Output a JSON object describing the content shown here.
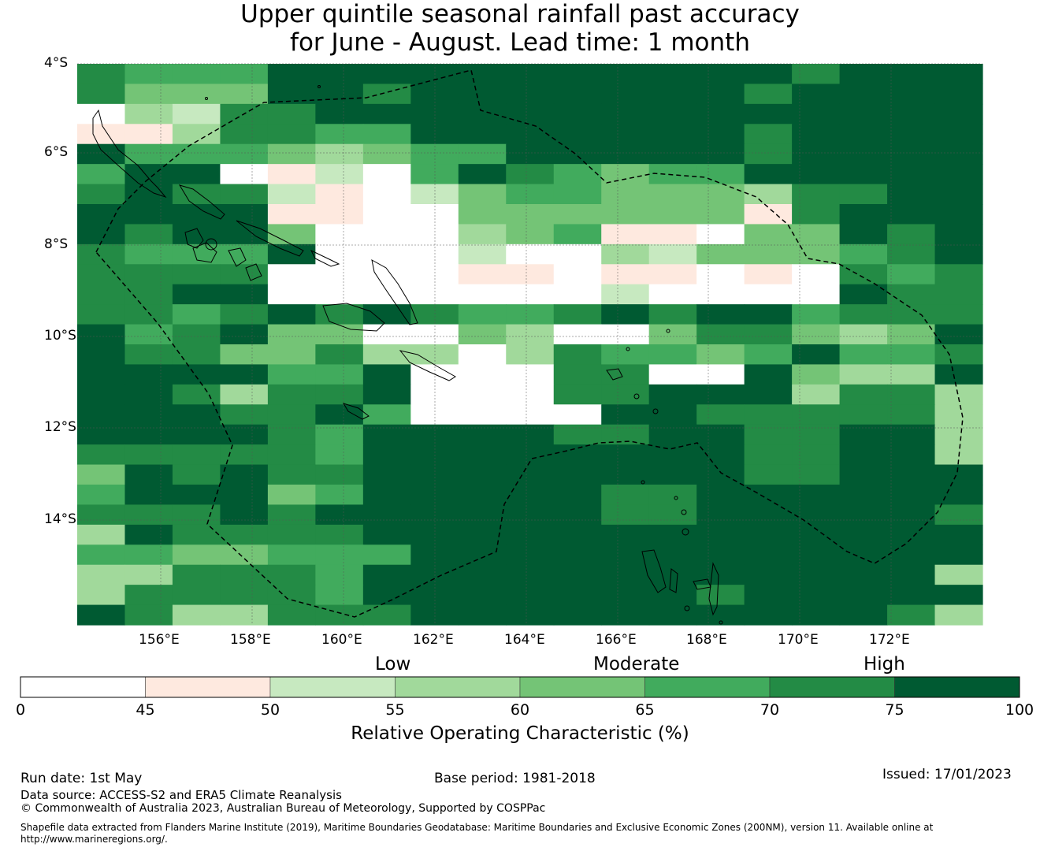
{
  "title": {
    "line1": "Upper quintile seasonal rainfall past accuracy",
    "line2": "for June - August. Lead time: 1 month"
  },
  "map": {
    "lat_labels": [
      "4°S",
      "6°S",
      "8°S",
      "10°S",
      "12°S",
      "14°S"
    ],
    "lon_labels": [
      "156°E",
      "158°E",
      "160°E",
      "162°E",
      "164°E",
      "166°E",
      "168°E",
      "170°E",
      "172°E"
    ],
    "grid_rows": [
      "6555777777777776777",
      "6444776777777767777",
      "0326677777777777777",
      "1136655777777767777",
      "7555434557777767777",
      "5770120576545577777",
      "6766210245544436677",
      "7777110044444416777",
      "7677400034511044767",
      "6555700020032444567",
      "6666000011011010656",
      "6677000000020000766",
      "6656767655676775666",
      "7567440043004664347",
      "7664463303655457556",
      "7777557000660074337",
      "7763667000667773663",
      "7776675000077666663",
      "7777657777667766773",
      "6666657777777766773",
      "4767667777777766777",
      "5777457777766777777",
      "6667677777766777776",
      "3766667777777777777",
      "5544555777777777777",
      "3366657777777777773",
      "3666657777777677777",
      "7633666777777777763"
    ]
  },
  "legend": {
    "categories": [
      "Low",
      "Moderate",
      "High"
    ],
    "colors": [
      "#ffffff",
      "#fee9df",
      "#c7e9c0",
      "#a1d99b",
      "#74c476",
      "#41ab5d",
      "#238b45",
      "#005a32"
    ],
    "ticks": [
      "0",
      "45",
      "50",
      "55",
      "60",
      "65",
      "70",
      "75",
      "100"
    ],
    "title": "Relative Operating Characteristic (%)"
  },
  "footer": {
    "run_date": "Run date: 1st May",
    "base_period": "Base period: 1981-2018",
    "issued": "Issued: 17/01/2023",
    "data_source": "Data source: ACCESS-S2 and ERA5 Climate Reanalysis",
    "copyright": "© Commonwealth of Australia 2023, Australian Bureau of Meteorology, Supported by COSPPac",
    "shapefile_note": "Shapefile data extracted from Flanders Marine Institute (2019), Maritime Boundaries Geodatabase: Maritime Boundaries and Exclusive Economic Zones (200NM), version 11. Available online at http://www.marineregions.org/."
  }
}
